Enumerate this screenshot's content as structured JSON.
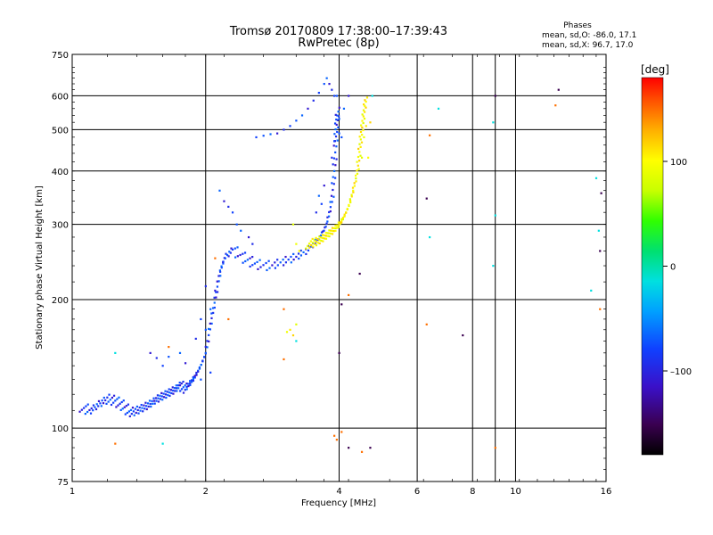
{
  "title": {
    "line1": "Tromsø 20170809 17:38:00–17:39:43",
    "line2": "RwPretec (8p)"
  },
  "phase_info": {
    "header": "Phases",
    "line_o": "mean, sd,O: -86.0, 17.1",
    "line_x": "mean, sd,X:  96.7, 17.0"
  },
  "colorbar": {
    "label": "[deg]",
    "ticks": [
      {
        "value": 100,
        "label": "100"
      },
      {
        "value": 0,
        "label": "0"
      },
      {
        "value": -100,
        "label": "–100"
      }
    ],
    "range": [
      -180,
      180
    ]
  },
  "chart_data": {
    "type": "scatter",
    "title": "Tromsø 20170809 17:38:00–17:39:43",
    "subtitle": "RwPretec (8p)",
    "xlabel": "Frequency [MHz]",
    "ylabel": "Stationary phase Virtual Height [km]",
    "xscale": "log",
    "yscale": "log",
    "xlim": [
      1,
      16
    ],
    "ylim": [
      75,
      750
    ],
    "xticks": [
      1,
      2,
      4,
      6,
      8,
      10,
      16
    ],
    "xtick_labels": [
      "1",
      "2",
      "4",
      "6",
      "8",
      "10",
      "16"
    ],
    "xgrid": [
      2,
      4,
      6,
      8,
      9,
      10
    ],
    "yticks": [
      75,
      100,
      200,
      300,
      400,
      500,
      600,
      750
    ],
    "ytick_labels": [
      "75",
      "100",
      "200",
      "300",
      "400",
      "500",
      "600",
      "750"
    ],
    "ygrid": [
      100,
      200,
      300,
      400,
      500,
      600
    ],
    "grid": true,
    "color_variable": "phase [deg]",
    "series": [
      {
        "phase": -100,
        "trace": [
          [
            1.05,
            112
          ],
          [
            1.1,
            110
          ],
          [
            1.15,
            114
          ],
          [
            1.2,
            117
          ],
          [
            1.25,
            116
          ],
          [
            1.3,
            113
          ],
          [
            1.35,
            109
          ],
          [
            1.4,
            110
          ],
          [
            1.45,
            112
          ],
          [
            1.5,
            114
          ],
          [
            1.55,
            117
          ],
          [
            1.6,
            119
          ],
          [
            1.65,
            121
          ],
          [
            1.7,
            123
          ],
          [
            1.75,
            126
          ],
          [
            1.8,
            124
          ],
          [
            1.85,
            128
          ],
          [
            1.9,
            133
          ],
          [
            1.95,
            140
          ],
          [
            2.0,
            150
          ],
          [
            2.05,
            175
          ],
          [
            2.1,
            200
          ],
          [
            2.15,
            230
          ],
          [
            2.2,
            250
          ],
          [
            2.3,
            262
          ],
          [
            2.45,
            250
          ],
          [
            2.6,
            242
          ],
          [
            2.8,
            240
          ],
          [
            3.0,
            246
          ],
          [
            3.2,
            252
          ],
          [
            3.4,
            262
          ],
          [
            3.6,
            278
          ],
          [
            3.75,
            300
          ],
          [
            3.85,
            340
          ],
          [
            3.9,
            400
          ],
          [
            3.93,
            470
          ],
          [
            3.95,
            520
          ],
          [
            3.97,
            560
          ]
        ],
        "extra": [
          [
            1.5,
            150
          ],
          [
            1.55,
            146
          ],
          [
            1.6,
            140
          ],
          [
            1.65,
            147
          ],
          [
            1.75,
            150
          ],
          [
            1.8,
            142
          ],
          [
            1.9,
            162
          ],
          [
            1.95,
            180
          ],
          [
            2.0,
            170
          ],
          [
            2.05,
            190
          ],
          [
            2.1,
            210
          ],
          [
            2.0,
            215
          ],
          [
            2.05,
            135
          ],
          [
            1.95,
            130
          ],
          [
            2.15,
            360
          ],
          [
            2.2,
            340
          ],
          [
            2.25,
            330
          ],
          [
            2.3,
            320
          ],
          [
            2.35,
            300
          ],
          [
            2.4,
            290
          ],
          [
            2.5,
            280
          ],
          [
            2.55,
            270
          ],
          [
            2.6,
            480
          ],
          [
            2.7,
            484
          ],
          [
            2.8,
            488
          ],
          [
            2.9,
            490
          ],
          [
            3.0,
            500
          ],
          [
            3.1,
            510
          ],
          [
            3.2,
            525
          ],
          [
            3.3,
            540
          ],
          [
            3.4,
            560
          ],
          [
            3.5,
            585
          ],
          [
            3.6,
            610
          ],
          [
            3.7,
            640
          ],
          [
            3.75,
            660
          ],
          [
            3.8,
            640
          ],
          [
            3.85,
            620
          ],
          [
            3.9,
            600
          ],
          [
            3.95,
            600
          ],
          [
            3.6,
            350
          ],
          [
            3.7,
            370
          ],
          [
            3.85,
            430
          ],
          [
            3.9,
            470
          ],
          [
            4.0,
            490
          ],
          [
            4.1,
            560
          ],
          [
            4.2,
            600
          ],
          [
            3.55,
            320
          ],
          [
            3.65,
            335
          ],
          [
            4.05,
            480
          ],
          [
            4.0,
            530
          ]
        ]
      },
      {
        "phase": 100,
        "trace": [
          [
            3.4,
            270
          ],
          [
            3.5,
            272
          ],
          [
            3.6,
            275
          ],
          [
            3.7,
            280
          ],
          [
            3.8,
            286
          ],
          [
            3.9,
            292
          ],
          [
            4.0,
            300
          ],
          [
            4.1,
            312
          ],
          [
            4.2,
            330
          ],
          [
            4.3,
            360
          ],
          [
            4.4,
            400
          ],
          [
            4.45,
            450
          ],
          [
            4.5,
            500
          ],
          [
            4.55,
            550
          ],
          [
            4.6,
            600
          ]
        ],
        "extra": [
          [
            3.15,
            300
          ],
          [
            3.2,
            270
          ],
          [
            3.25,
            260
          ],
          [
            4.6,
            510
          ],
          [
            4.7,
            520
          ],
          [
            4.5,
            430
          ],
          [
            4.55,
            480
          ],
          [
            4.65,
            430
          ],
          [
            3.1,
            170
          ],
          [
            3.15,
            165
          ],
          [
            3.2,
            175
          ],
          [
            3.05,
            168
          ]
        ]
      },
      {
        "phase": 150,
        "points": [
          [
            1.25,
            92
          ],
          [
            1.65,
            155
          ],
          [
            2.1,
            250
          ],
          [
            2.25,
            180
          ],
          [
            3.0,
            190
          ],
          [
            3.9,
            96
          ],
          [
            3.95,
            94
          ],
          [
            4.05,
            98
          ],
          [
            4.2,
            205
          ],
          [
            4.5,
            88
          ],
          [
            6.4,
            485
          ],
          [
            6.3,
            175
          ],
          [
            9.0,
            90
          ],
          [
            12.3,
            570
          ],
          [
            15.5,
            190
          ],
          [
            3.0,
            145
          ]
        ]
      },
      {
        "phase": -30,
        "points": [
          [
            1.25,
            150
          ],
          [
            1.6,
            92
          ],
          [
            6.4,
            280
          ],
          [
            8.9,
            240
          ],
          [
            15.2,
            385
          ],
          [
            15.4,
            290
          ],
          [
            14.8,
            210
          ],
          [
            6.7,
            560
          ],
          [
            4.75,
            600
          ],
          [
            8.9,
            520
          ],
          [
            3.2,
            160
          ],
          [
            9.0,
            315
          ]
        ]
      },
      {
        "phase": -150,
        "points": [
          [
            4.0,
            150
          ],
          [
            4.05,
            195
          ],
          [
            6.3,
            345
          ],
          [
            7.6,
            165
          ],
          [
            9.0,
            600
          ],
          [
            12.5,
            620
          ],
          [
            15.5,
            260
          ],
          [
            15.6,
            355
          ],
          [
            4.2,
            90
          ],
          [
            4.45,
            230
          ],
          [
            4.7,
            90
          ]
        ]
      }
    ]
  }
}
